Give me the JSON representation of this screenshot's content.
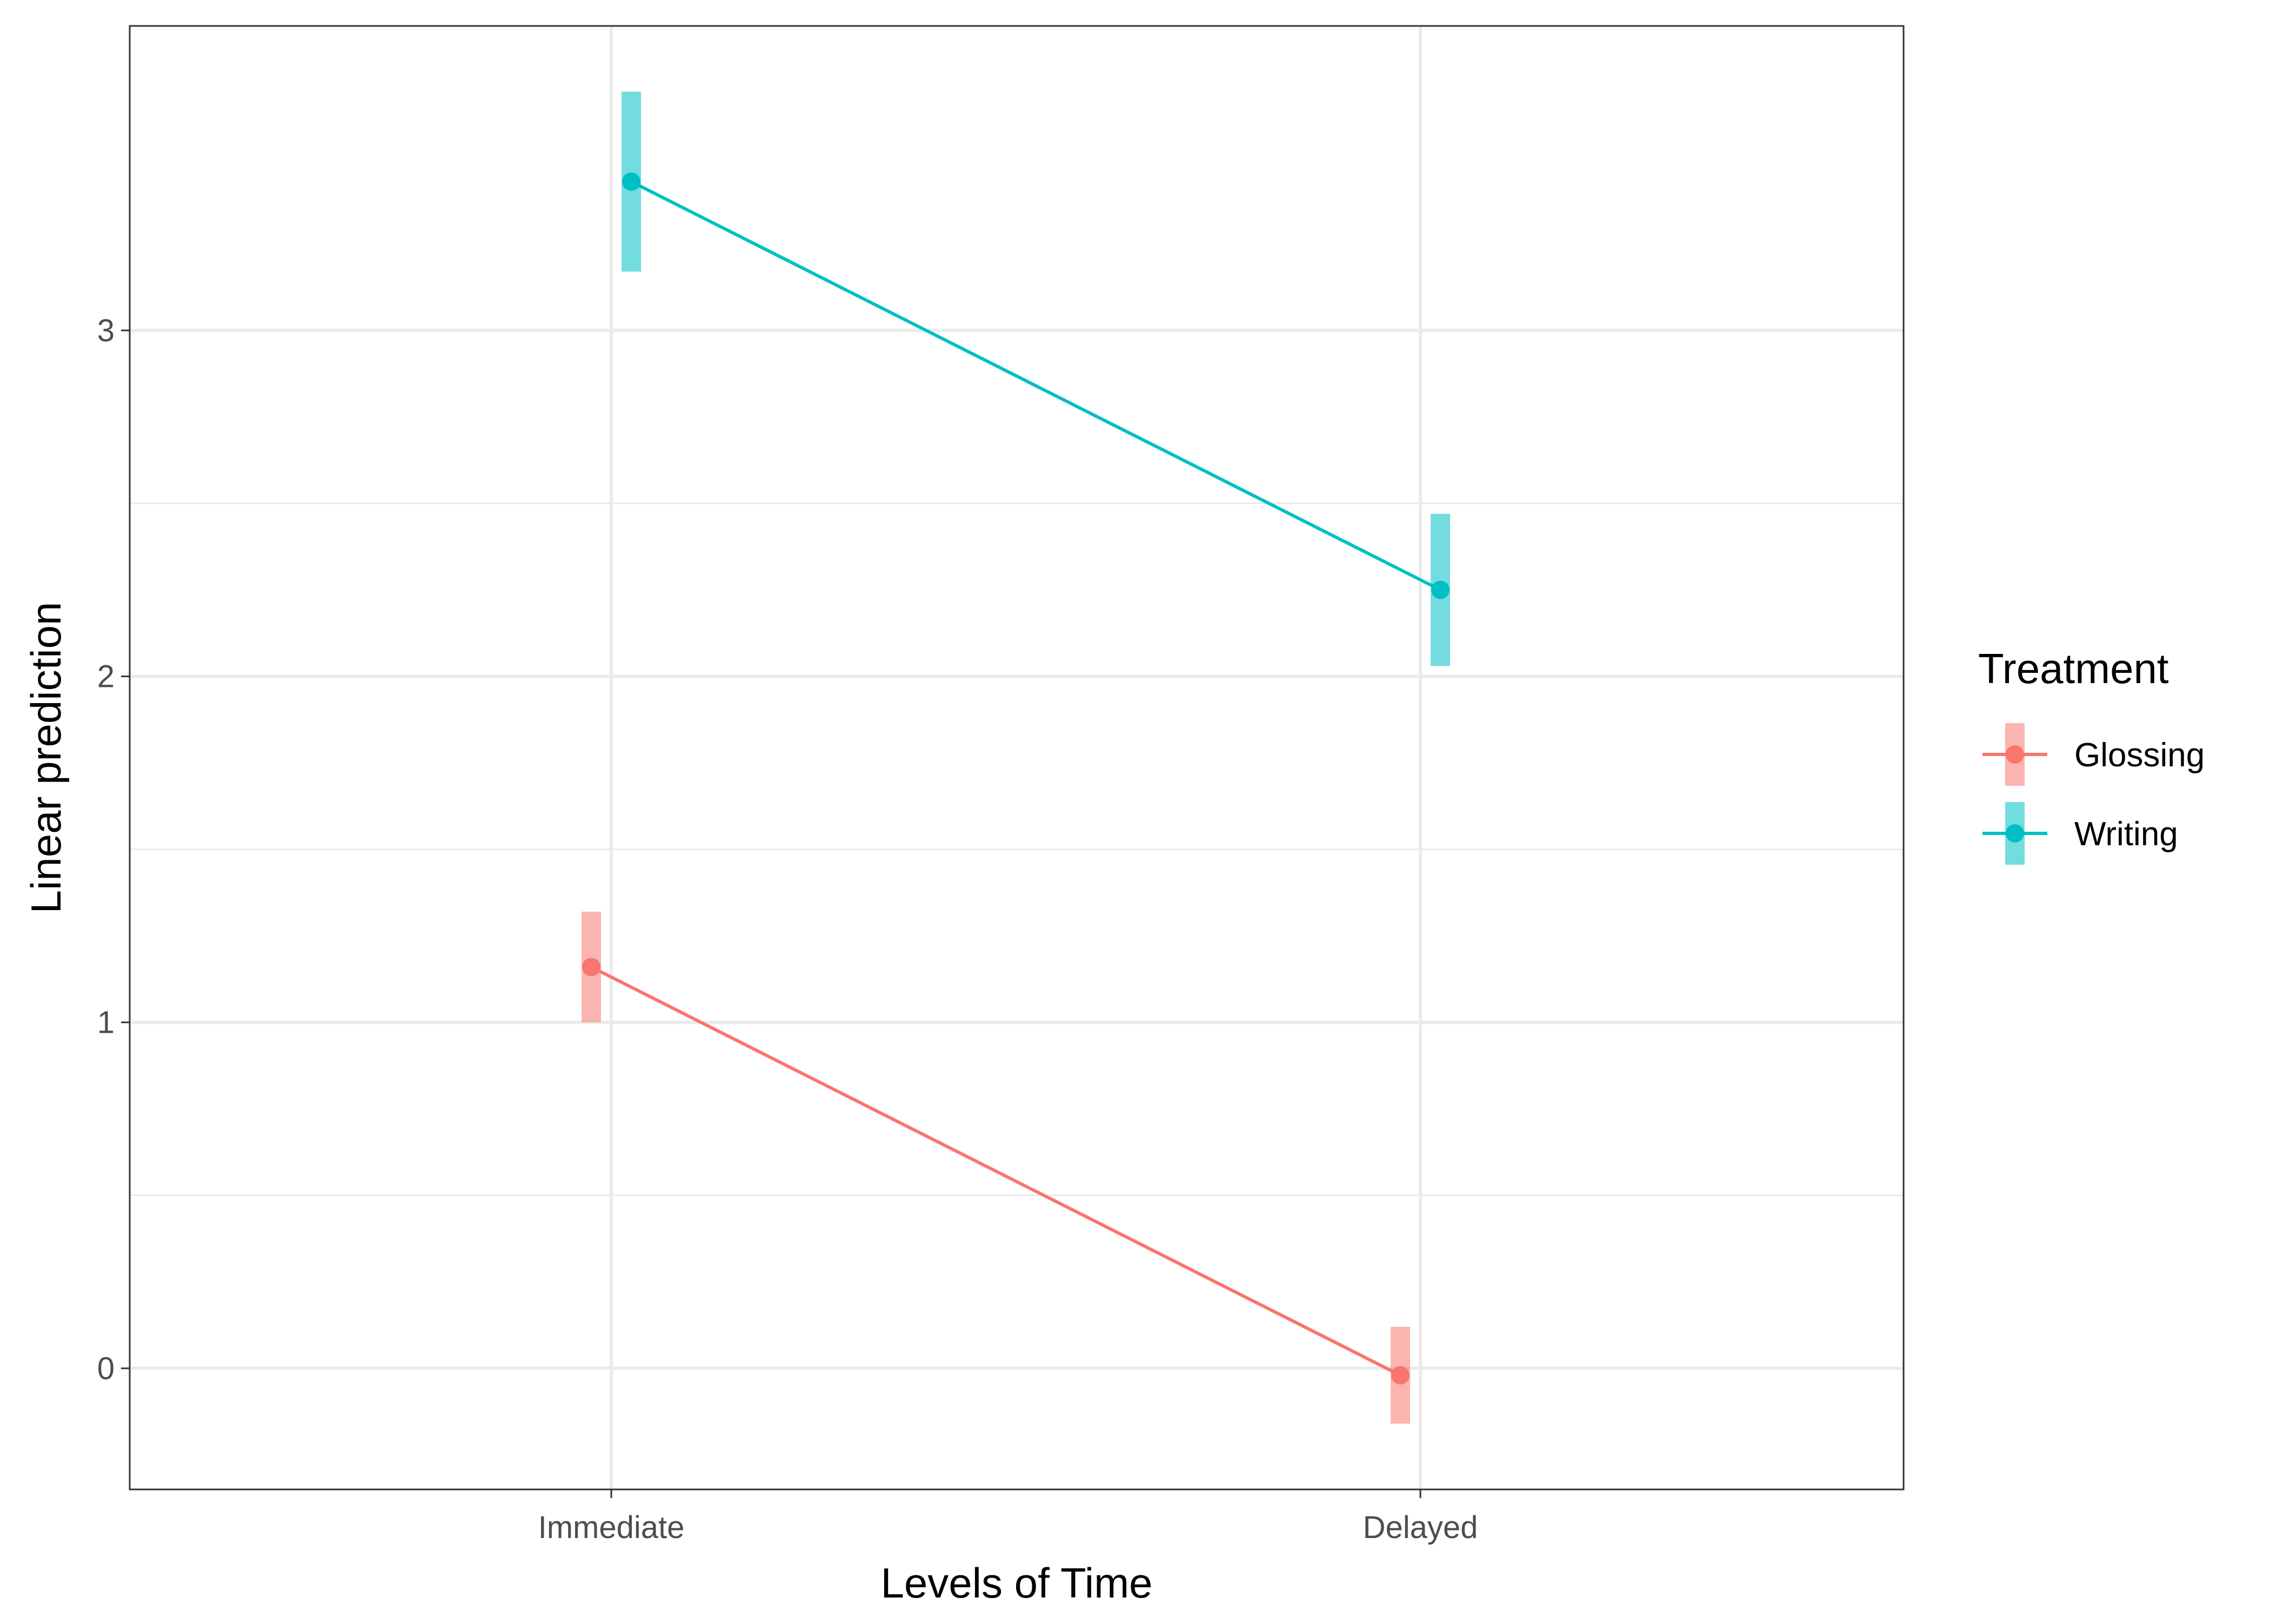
{
  "chart_data": {
    "type": "line",
    "title": "",
    "xlabel": "Levels of Time",
    "ylabel": "Linear prediction",
    "categories": [
      "Immediate",
      "Delayed"
    ],
    "y_ticks": [
      "0",
      "1",
      "2",
      "3"
    ],
    "ylim": [
      -0.35,
      3.88
    ],
    "grid": true,
    "legend": {
      "title": "Treatment",
      "placement": "right"
    },
    "series": [
      {
        "name": "Glossing",
        "color": "#F8766D",
        "values": [
          1.16,
          -0.02
        ],
        "ci_low": [
          1.0,
          -0.16
        ],
        "ci_high": [
          1.32,
          0.12
        ]
      },
      {
        "name": "Writing",
        "color": "#00BFC4",
        "values": [
          3.43,
          2.25
        ],
        "ci_low": [
          3.17,
          2.03
        ],
        "ci_high": [
          3.69,
          2.47
        ]
      }
    ]
  }
}
